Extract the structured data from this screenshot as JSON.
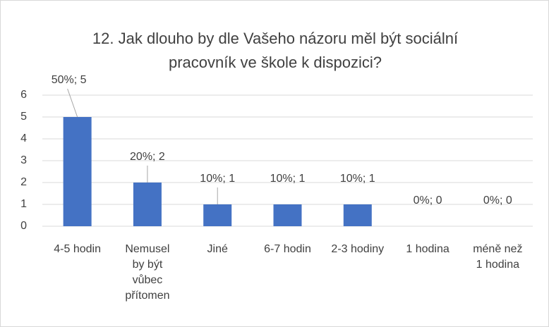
{
  "chart_data": {
    "type": "bar",
    "title": "12. Jak dlouho by dle Vašeho názoru měl být sociální pracovník ve škole k dispozici?",
    "categories": [
      "4-5 hodin",
      "Nemusel by být vůbec přítomen",
      "Jiné",
      "6-7 hodin",
      "2-3 hodiny",
      "1 hodina",
      "méně než 1 hodina"
    ],
    "values": [
      5,
      2,
      1,
      1,
      1,
      0,
      0
    ],
    "value_labels": [
      "50%; 5",
      "20%; 2",
      "10%; 1",
      "10%; 1",
      "10%; 1",
      "0%; 0",
      "0%; 0"
    ],
    "color": "#4472c4",
    "ylim": [
      0,
      6
    ],
    "yticks": [
      0,
      1,
      2,
      3,
      4,
      5,
      6
    ],
    "grid": true
  }
}
